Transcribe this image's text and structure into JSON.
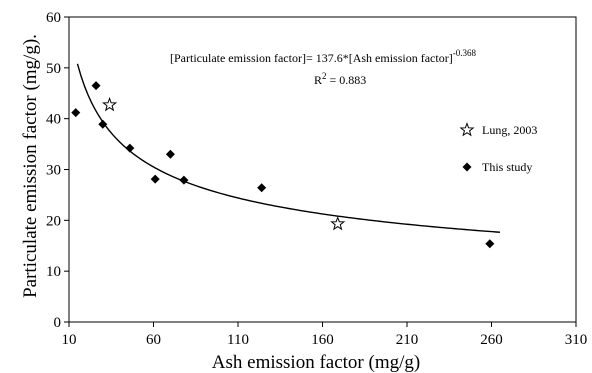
{
  "chart_data": {
    "type": "scatter",
    "xlabel": "Ash emission factor (mg/g)",
    "ylabel": "Particulate emission factor (mg/g).",
    "xlim": [
      10,
      310
    ],
    "ylim": [
      0,
      60
    ],
    "xticks": [
      10,
      60,
      110,
      160,
      210,
      260,
      310
    ],
    "yticks": [
      0,
      10,
      20,
      30,
      40,
      50,
      60
    ],
    "xtick_labels": [
      "10",
      "60",
      "110",
      "160",
      "210",
      "260",
      "310"
    ],
    "ytick_labels": [
      "0",
      "10",
      "20",
      "30",
      "40",
      "50",
      "60"
    ],
    "grid": false,
    "legend_position": "right",
    "series": [
      {
        "name": "Lung, 2003",
        "marker": "star",
        "points": [
          [
            34,
            42.7
          ],
          [
            169,
            19.3
          ]
        ]
      },
      {
        "name": "This study",
        "marker": "diamond",
        "points": [
          [
            14,
            41.2
          ],
          [
            26,
            46.5
          ],
          [
            30,
            38.9
          ],
          [
            46,
            34.2
          ],
          [
            61,
            28.1
          ],
          [
            70,
            33.0
          ],
          [
            78,
            27.9
          ],
          [
            124,
            26.4
          ],
          [
            259,
            15.4
          ]
        ]
      }
    ],
    "fit": {
      "coefficient": 137.6,
      "exponent": -0.368,
      "x_range": [
        15,
        265
      ]
    },
    "annotations": {
      "equation_main": "[Particulate emission factor]= 137.6*[Ash emission factor]",
      "equation_exponent": "-0.368",
      "r2_prefix": "R",
      "r2_superscript": "2",
      "r2_value": " = 0.883"
    }
  }
}
